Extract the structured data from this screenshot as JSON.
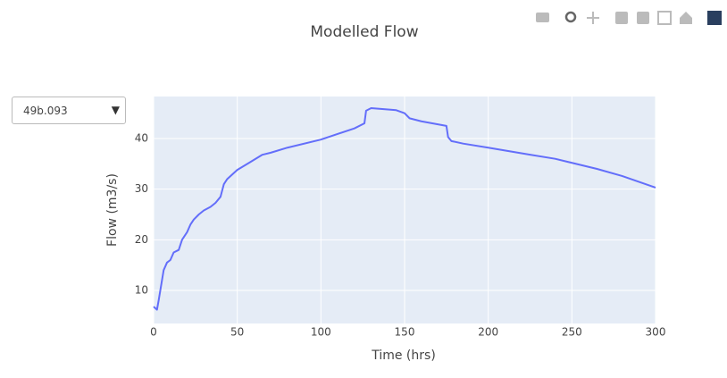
{
  "chart_data": {
    "type": "line",
    "title": "Modelled Flow",
    "x_label": "Time (hrs)",
    "y_label": "Flow (m3/s)",
    "x": [
      0,
      1,
      2,
      3,
      4,
      5,
      6,
      8,
      10,
      12,
      15,
      17,
      20,
      22,
      24,
      27,
      30,
      34,
      37,
      40,
      42,
      44,
      50,
      57,
      65,
      70,
      80,
      100,
      120,
      126,
      127,
      130,
      145,
      150,
      153,
      160,
      175,
      176,
      178,
      185,
      200,
      225,
      240,
      265,
      280,
      300
    ],
    "series": [
      {
        "name": "Flow",
        "color": "#636efa",
        "values": [
          6.8,
          6.5,
          6.2,
          8,
          10,
          12,
          14,
          15.5,
          16,
          17.5,
          18,
          20,
          21.5,
          23,
          24,
          25,
          25.8,
          26.5,
          27.3,
          28.5,
          31,
          32,
          33.8,
          35.2,
          36.8,
          37.2,
          38.2,
          39.8,
          42,
          43,
          45.5,
          46,
          45.6,
          45,
          44,
          43.4,
          42.5,
          40.3,
          39.5,
          39,
          38.2,
          36.8,
          36,
          34,
          32.6,
          30.3
        ]
      }
    ],
    "xlim": [
      0,
      300
    ],
    "xticks": [
      0,
      50,
      100,
      150,
      200,
      250,
      300
    ],
    "ylim": [
      3.47,
      48.3
    ],
    "yticks": [
      10,
      20,
      30,
      40
    ],
    "grid": true
  },
  "dropdown": {
    "selected": "49b.093"
  }
}
